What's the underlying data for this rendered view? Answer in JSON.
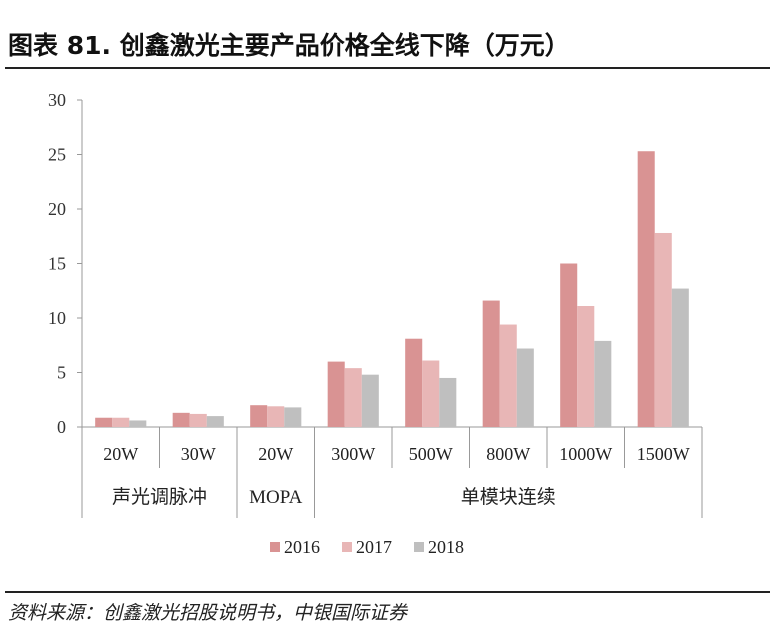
{
  "title": "图表 81. 创鑫激光主要产品价格全线下降（万元）",
  "source": "资料来源：创鑫激光招股说明书，中银国际证券",
  "colors": {
    "2016": "#d99393",
    "2017": "#e8b6b6",
    "2018": "#bfbfbf"
  },
  "chart_data": {
    "type": "bar",
    "title": "创鑫激光主要产品价格全线下降（万元）",
    "ylabel": "万元",
    "ylim": [
      0,
      30
    ],
    "yticks": [
      0,
      5,
      10,
      15,
      20,
      25,
      30
    ],
    "categories": [
      "20W",
      "30W",
      "20W",
      "300W",
      "500W",
      "800W",
      "1000W",
      "1500W"
    ],
    "groups": [
      {
        "label": "声光调脉冲",
        "span": 2
      },
      {
        "label": "MOPA",
        "span": 1
      },
      {
        "label": "单模块连续",
        "span": 5
      }
    ],
    "series": [
      {
        "name": "2016",
        "values": [
          0.85,
          1.3,
          2.0,
          6.0,
          8.1,
          11.6,
          15.0,
          25.3
        ]
      },
      {
        "name": "2017",
        "values": [
          0.85,
          1.2,
          1.9,
          5.4,
          6.1,
          9.4,
          11.1,
          17.8
        ]
      },
      {
        "name": "2018",
        "values": [
          0.6,
          1.0,
          1.8,
          4.8,
          4.5,
          7.2,
          7.9,
          12.7
        ]
      }
    ],
    "legend": "bottom",
    "grid": false
  }
}
